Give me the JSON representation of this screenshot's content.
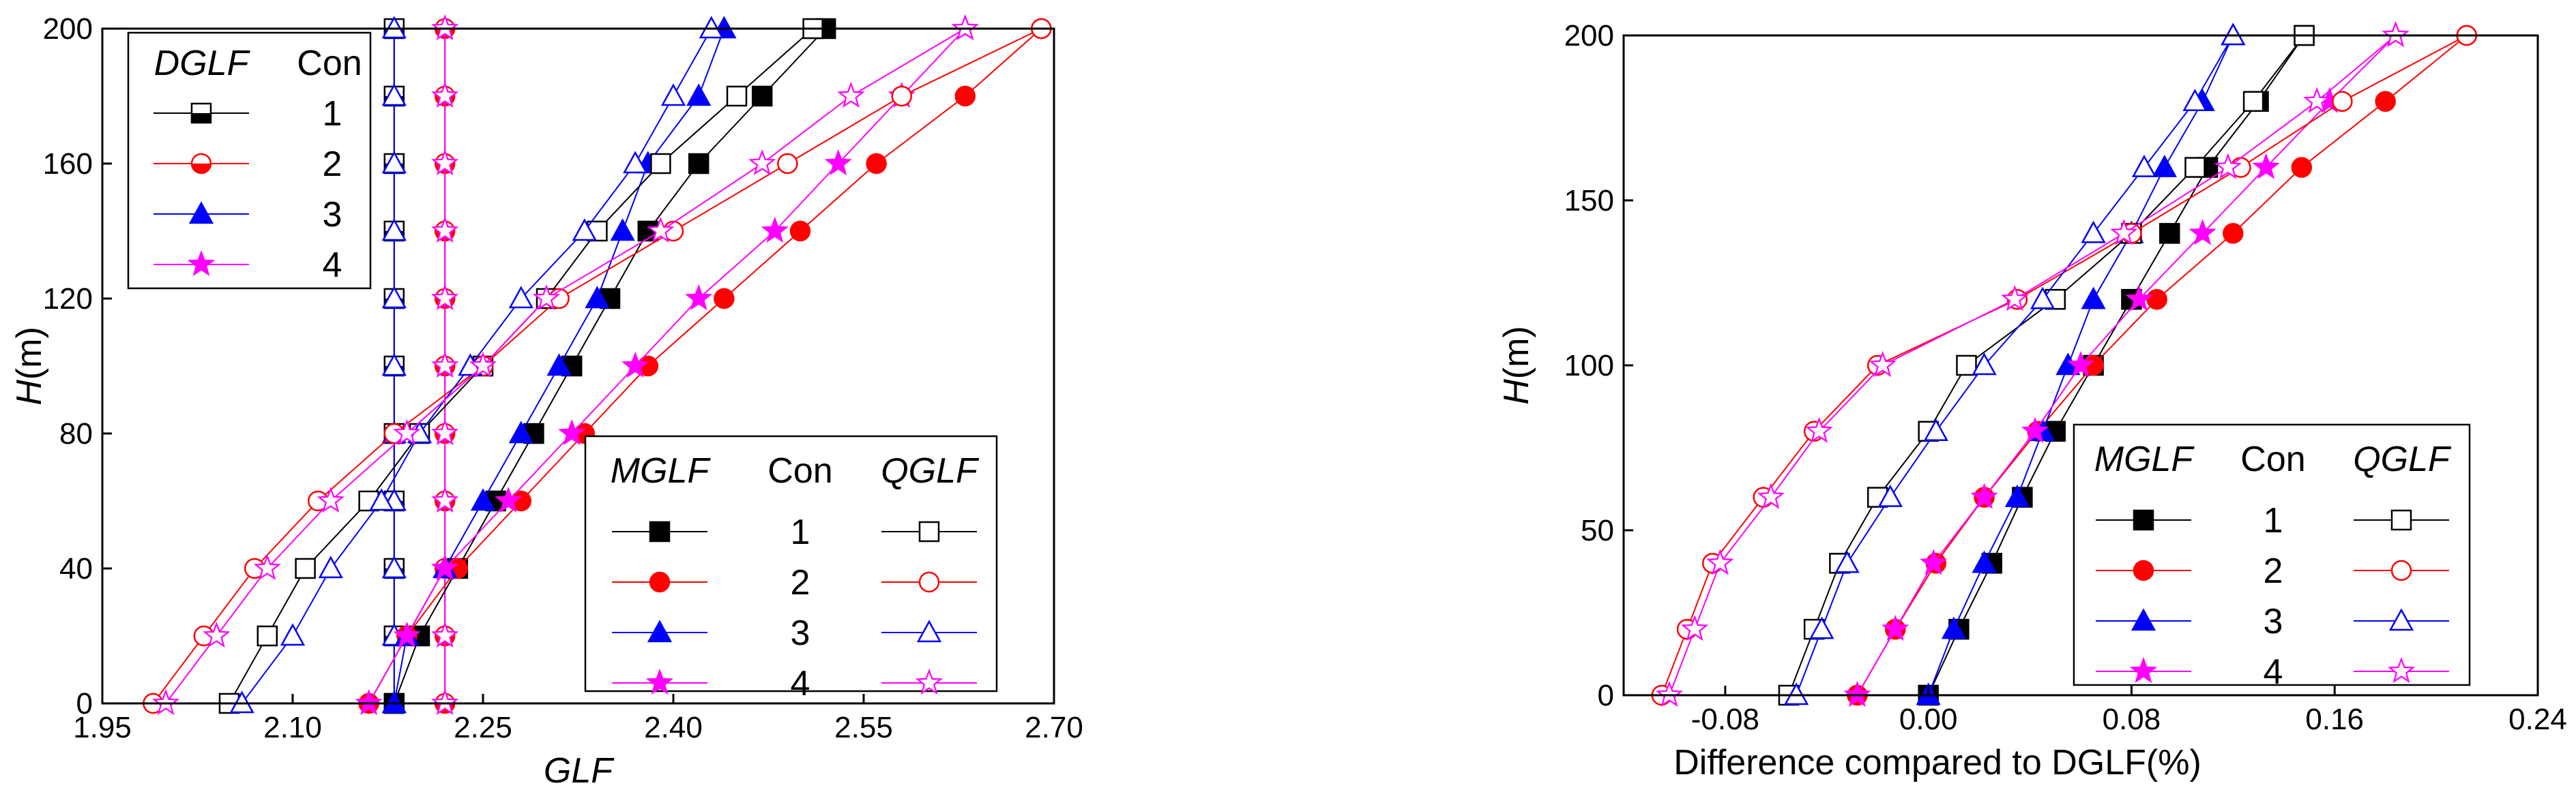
{
  "colors": {
    "con1": "#000000",
    "con2": "#ff0000",
    "con3": "#0000ff",
    "con4": "#ff00ff"
  },
  "chart_data": [
    {
      "id": "left",
      "type": "line",
      "xlabel": "GLF",
      "ylabel_italic": "H",
      "ylabel_unit": "(m)",
      "xlim": [
        1.95,
        2.7
      ],
      "ylim": [
        0,
        200
      ],
      "xticks": [
        1.95,
        2.1,
        2.25,
        2.4,
        2.55,
        2.7
      ],
      "xtick_labels": [
        "1.95",
        "2.10",
        "2.25",
        "2.40",
        "2.55",
        "2.70"
      ],
      "yticks": [
        0,
        40,
        80,
        120,
        160,
        200
      ],
      "ytick_labels": [
        "0",
        "40",
        "80",
        "120",
        "160",
        "200"
      ],
      "y": [
        0,
        20,
        40,
        60,
        80,
        100,
        120,
        140,
        160,
        180,
        200
      ],
      "series": [
        {
          "name": "DGLF Con 1",
          "group": "DGLF",
          "con": "1",
          "marker": "square-halfdown",
          "values": [
            2.18,
            2.18,
            2.18,
            2.18,
            2.18,
            2.18,
            2.18,
            2.18,
            2.18,
            2.18,
            2.18
          ]
        },
        {
          "name": "DGLF Con 2",
          "group": "DGLF",
          "con": "2",
          "marker": "circle-halfdown",
          "values": [
            2.22,
            2.22,
            2.22,
            2.22,
            2.22,
            2.22,
            2.22,
            2.22,
            2.22,
            2.22,
            2.22
          ]
        },
        {
          "name": "DGLF Con 3",
          "group": "DGLF",
          "con": "3",
          "marker": "triangle",
          "values": [
            2.18,
            2.18,
            2.18,
            2.18,
            2.18,
            2.18,
            2.18,
            2.18,
            2.18,
            2.18,
            2.18
          ]
        },
        {
          "name": "DGLF Con 4",
          "group": "DGLF",
          "con": "4",
          "marker": "star",
          "values": [
            2.22,
            2.22,
            2.22,
            2.22,
            2.22,
            2.22,
            2.22,
            2.22,
            2.22,
            2.22,
            2.22
          ]
        },
        {
          "name": "MGLF Con 1",
          "group": "MGLF",
          "con": "1",
          "marker": "square",
          "filled": true,
          "values": [
            2.18,
            2.2,
            2.23,
            2.26,
            2.29,
            2.32,
            2.35,
            2.38,
            2.42,
            2.47,
            2.52
          ]
        },
        {
          "name": "MGLF Con 2",
          "group": "MGLF",
          "con": "2",
          "marker": "circle",
          "filled": true,
          "values": [
            2.16,
            2.19,
            2.23,
            2.28,
            2.33,
            2.38,
            2.44,
            2.5,
            2.56,
            2.63,
            2.69
          ]
        },
        {
          "name": "MGLF Con 3",
          "group": "MGLF",
          "con": "3",
          "marker": "triangle",
          "filled": true,
          "values": [
            2.18,
            2.19,
            2.22,
            2.25,
            2.28,
            2.31,
            2.34,
            2.36,
            2.38,
            2.42,
            2.44
          ]
        },
        {
          "name": "MGLF Con 4",
          "group": "MGLF",
          "con": "4",
          "marker": "star",
          "filled": true,
          "values": [
            2.16,
            2.19,
            2.22,
            2.27,
            2.32,
            2.37,
            2.42,
            2.48,
            2.53,
            2.58,
            2.63
          ]
        },
        {
          "name": "QGLF Con 1",
          "group": "QGLF",
          "con": "1",
          "marker": "square",
          "filled": false,
          "values": [
            2.05,
            2.08,
            2.11,
            2.16,
            2.2,
            2.25,
            2.3,
            2.34,
            2.39,
            2.45,
            2.51
          ]
        },
        {
          "name": "QGLF Con 2",
          "group": "QGLF",
          "con": "2",
          "marker": "circle",
          "filled": false,
          "values": [
            1.99,
            2.03,
            2.07,
            2.12,
            2.18,
            2.25,
            2.31,
            2.4,
            2.49,
            2.58,
            2.69
          ]
        },
        {
          "name": "QGLF Con 3",
          "group": "QGLF",
          "con": "3",
          "marker": "triangle",
          "filled": false,
          "values": [
            2.06,
            2.1,
            2.13,
            2.17,
            2.2,
            2.24,
            2.28,
            2.33,
            2.37,
            2.4,
            2.43
          ]
        },
        {
          "name": "QGLF Con 4",
          "group": "QGLF",
          "con": "4",
          "marker": "star",
          "filled": false,
          "values": [
            2.0,
            2.04,
            2.08,
            2.13,
            2.19,
            2.25,
            2.3,
            2.39,
            2.47,
            2.54,
            2.63
          ]
        }
      ],
      "legends": [
        {
          "id": "dglf",
          "header": [
            "DGLF",
            "Con"
          ],
          "entries": [
            "1",
            "2",
            "3",
            "4"
          ],
          "position": "top-left"
        },
        {
          "id": "mq",
          "header": [
            "MGLF",
            "Con",
            "QGLF"
          ],
          "entries": [
            "1",
            "2",
            "3",
            "4"
          ],
          "position": "bottom-right"
        }
      ]
    },
    {
      "id": "right",
      "type": "line",
      "xlabel": "Difference compared to DGLF(%)",
      "ylabel_italic": "H",
      "ylabel_unit": "(m)",
      "xlim": [
        -0.12,
        0.24
      ],
      "ylim": [
        0,
        200
      ],
      "xticks": [
        -0.08,
        0.0,
        0.08,
        0.16,
        0.24
      ],
      "xtick_labels": [
        "-0.08",
        "0.00",
        "0.08",
        "0.16",
        "0.24"
      ],
      "yticks": [
        0,
        50,
        100,
        150,
        200
      ],
      "ytick_labels": [
        "0",
        "50",
        "100",
        "150",
        "200"
      ],
      "y": [
        0,
        20,
        40,
        60,
        80,
        100,
        120,
        140,
        160,
        180,
        200
      ],
      "series": [
        {
          "name": "MGLF Con 1",
          "group": "MGLF",
          "con": "1",
          "marker": "square",
          "filled": true,
          "values": [
            0.0,
            0.012,
            0.025,
            0.037,
            0.05,
            0.065,
            0.08,
            0.095,
            0.11,
            0.13,
            0.148
          ]
        },
        {
          "name": "MGLF Con 2",
          "group": "MGLF",
          "con": "2",
          "marker": "circle",
          "filled": true,
          "values": [
            -0.028,
            -0.013,
            0.003,
            0.022,
            0.043,
            0.065,
            0.09,
            0.12,
            0.147,
            0.18,
            0.212
          ]
        },
        {
          "name": "MGLF Con 3",
          "group": "MGLF",
          "con": "3",
          "marker": "triangle",
          "filled": true,
          "values": [
            0.0,
            0.01,
            0.022,
            0.035,
            0.045,
            0.055,
            0.065,
            0.08,
            0.093,
            0.108,
            0.12
          ]
        },
        {
          "name": "MGLF Con 4",
          "group": "MGLF",
          "con": "4",
          "marker": "star",
          "filled": true,
          "values": [
            -0.028,
            -0.013,
            0.002,
            0.022,
            0.042,
            0.06,
            0.083,
            0.108,
            0.133,
            0.158,
            0.184
          ]
        },
        {
          "name": "QGLF Con 1",
          "group": "QGLF",
          "con": "1",
          "marker": "square",
          "filled": false,
          "values": [
            -0.055,
            -0.045,
            -0.035,
            -0.02,
            0.0,
            0.015,
            0.05,
            0.08,
            0.105,
            0.128,
            0.148
          ]
        },
        {
          "name": "QGLF Con 2",
          "group": "QGLF",
          "con": "2",
          "marker": "circle",
          "filled": false,
          "values": [
            -0.105,
            -0.095,
            -0.085,
            -0.065,
            -0.045,
            -0.02,
            0.035,
            0.08,
            0.123,
            0.163,
            0.212
          ]
        },
        {
          "name": "QGLF Con 3",
          "group": "QGLF",
          "con": "3",
          "marker": "triangle",
          "filled": false,
          "values": [
            -0.052,
            -0.042,
            -0.032,
            -0.015,
            0.003,
            0.022,
            0.045,
            0.065,
            0.085,
            0.105,
            0.12
          ]
        },
        {
          "name": "QGLF Con 4",
          "group": "QGLF",
          "con": "4",
          "marker": "star",
          "filled": false,
          "values": [
            -0.102,
            -0.092,
            -0.082,
            -0.062,
            -0.043,
            -0.018,
            0.034,
            0.077,
            0.118,
            0.153,
            0.184
          ]
        }
      ],
      "legends": [
        {
          "id": "mq",
          "header": [
            "MGLF",
            "Con",
            "QGLF"
          ],
          "entries": [
            "1",
            "2",
            "3",
            "4"
          ],
          "position": "bottom-right"
        }
      ]
    }
  ]
}
